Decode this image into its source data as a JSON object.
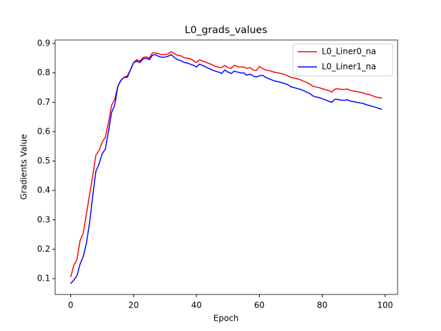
{
  "chart_data": {
    "type": "line",
    "title": "L0_grads_values",
    "xlabel": "Epoch",
    "ylabel": "Gradients Value",
    "x": [
      0,
      1,
      2,
      3,
      4,
      5,
      6,
      7,
      8,
      9,
      10,
      11,
      12,
      13,
      14,
      15,
      16,
      17,
      18,
      19,
      20,
      21,
      22,
      23,
      24,
      25,
      26,
      27,
      28,
      29,
      30,
      31,
      32,
      33,
      34,
      35,
      36,
      37,
      38,
      39,
      40,
      41,
      42,
      43,
      44,
      45,
      46,
      47,
      48,
      49,
      50,
      51,
      52,
      53,
      54,
      55,
      56,
      57,
      58,
      59,
      60,
      61,
      62,
      63,
      64,
      65,
      66,
      67,
      68,
      69,
      70,
      71,
      72,
      73,
      74,
      75,
      76,
      77,
      78,
      79,
      80,
      81,
      82,
      83,
      84,
      85,
      86,
      87,
      88,
      89,
      90,
      91,
      92,
      93,
      94,
      95,
      96,
      97,
      98,
      99
    ],
    "series": [
      {
        "name": "L0_Liner0_na",
        "color": "#ff0000",
        "values": [
          0.105,
          0.145,
          0.165,
          0.23,
          0.255,
          0.32,
          0.385,
          0.45,
          0.52,
          0.535,
          0.565,
          0.58,
          0.63,
          0.69,
          0.71,
          0.755,
          0.775,
          0.785,
          0.79,
          0.81,
          0.835,
          0.845,
          0.84,
          0.852,
          0.855,
          0.85,
          0.868,
          0.868,
          0.865,
          0.862,
          0.862,
          0.865,
          0.872,
          0.865,
          0.86,
          0.858,
          0.852,
          0.85,
          0.848,
          0.842,
          0.835,
          0.845,
          0.84,
          0.836,
          0.832,
          0.828,
          0.822,
          0.82,
          0.818,
          0.825,
          0.818,
          0.815,
          0.826,
          0.822,
          0.82,
          0.82,
          0.815,
          0.818,
          0.81,
          0.808,
          0.822,
          0.815,
          0.81,
          0.808,
          0.805,
          0.802,
          0.8,
          0.798,
          0.795,
          0.79,
          0.785,
          0.783,
          0.78,
          0.777,
          0.772,
          0.768,
          0.762,
          0.755,
          0.752,
          0.75,
          0.746,
          0.743,
          0.74,
          0.735,
          0.745,
          0.746,
          0.744,
          0.744,
          0.745,
          0.74,
          0.738,
          0.737,
          0.734,
          0.732,
          0.728,
          0.726,
          0.722,
          0.718,
          0.716,
          0.714
        ]
      },
      {
        "name": "L0_Liner1_na",
        "color": "#0000ff",
        "values": [
          0.083,
          0.095,
          0.11,
          0.15,
          0.175,
          0.22,
          0.29,
          0.38,
          0.465,
          0.49,
          0.525,
          0.54,
          0.6,
          0.665,
          0.69,
          0.755,
          0.775,
          0.785,
          0.785,
          0.81,
          0.835,
          0.84,
          0.835,
          0.848,
          0.85,
          0.845,
          0.86,
          0.862,
          0.856,
          0.853,
          0.854,
          0.857,
          0.862,
          0.852,
          0.845,
          0.842,
          0.836,
          0.834,
          0.83,
          0.826,
          0.82,
          0.83,
          0.825,
          0.82,
          0.815,
          0.81,
          0.806,
          0.803,
          0.798,
          0.81,
          0.803,
          0.798,
          0.806,
          0.803,
          0.8,
          0.8,
          0.792,
          0.796,
          0.79,
          0.786,
          0.79,
          0.792,
          0.785,
          0.78,
          0.776,
          0.772,
          0.77,
          0.767,
          0.764,
          0.76,
          0.753,
          0.75,
          0.747,
          0.744,
          0.74,
          0.735,
          0.73,
          0.722,
          0.718,
          0.716,
          0.712,
          0.708,
          0.704,
          0.7,
          0.71,
          0.71,
          0.707,
          0.707,
          0.708,
          0.704,
          0.702,
          0.7,
          0.698,
          0.696,
          0.692,
          0.689,
          0.686,
          0.683,
          0.679,
          0.676
        ]
      }
    ],
    "xlim": [
      -4.95,
      103.95
    ],
    "xticks": [
      0,
      20,
      40,
      60,
      80,
      100
    ],
    "ylim": [
      0.046,
      0.912
    ],
    "yticks": [
      0.1,
      0.2,
      0.3,
      0.4,
      0.5,
      0.6,
      0.7,
      0.8,
      0.9
    ],
    "legend": "upper right"
  }
}
